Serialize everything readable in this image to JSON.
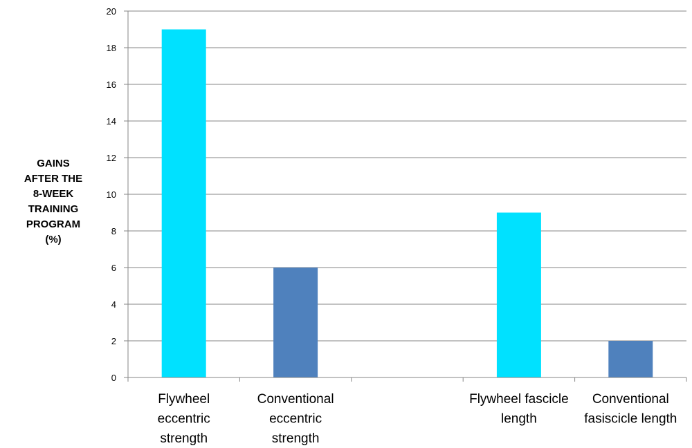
{
  "chart_data": {
    "type": "bar",
    "categories": [
      [
        "Flywheel",
        "eccentric",
        "strength"
      ],
      [
        "Conventional",
        "eccentric",
        "strength"
      ],
      [],
      [
        "Flywheel  fascicle",
        "length"
      ],
      [
        "Conventional",
        "fasiscicle length"
      ]
    ],
    "values": [
      19,
      6,
      null,
      9,
      2
    ],
    "bar_colors": [
      "#00E1FF",
      "#4F81BD",
      null,
      "#00E1FF",
      "#4F81BD"
    ],
    "ylabel_lines": [
      "GAINS",
      "AFTER THE",
      "8-WEEK",
      "TRAINING",
      "PROGRAM",
      "(%)"
    ],
    "ylim": [
      0,
      20
    ],
    "yticks": [
      0,
      2,
      4,
      6,
      8,
      10,
      12,
      14,
      16,
      18,
      20
    ],
    "grid": true,
    "gridline_color": "#868686"
  }
}
